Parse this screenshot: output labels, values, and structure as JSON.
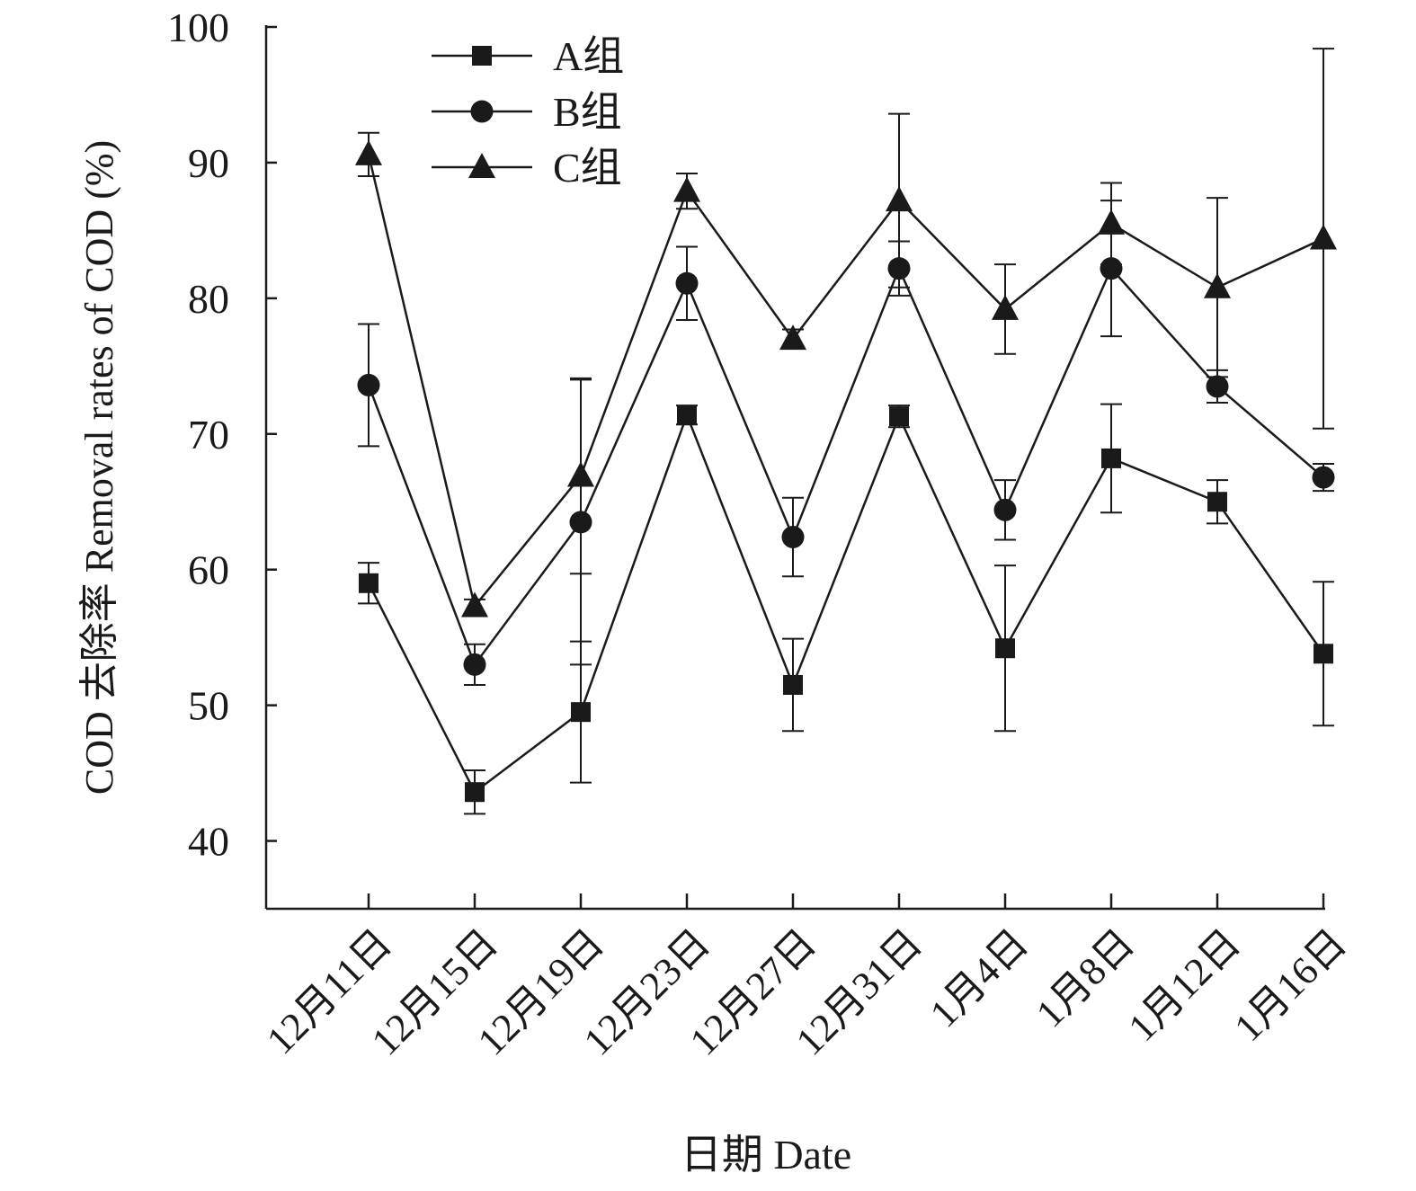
{
  "chart_data": {
    "type": "line",
    "title": "",
    "xlabel": "日期 Date",
    "ylabel": "COD 去除率 Removal rates of COD (%)",
    "ylim": [
      35,
      100
    ],
    "yticks": [
      40,
      50,
      60,
      70,
      80,
      90,
      100
    ],
    "categories": [
      "12月11日",
      "12月15日",
      "12月19日",
      "12月23日",
      "12月27日",
      "12月31日",
      "1月4日",
      "1月8日",
      "1月12日",
      "1月16日"
    ],
    "x_points": 10,
    "legend_position": "top-left",
    "grid": false,
    "series": [
      {
        "name": "A组",
        "marker": "square",
        "values": [
          59.0,
          43.6,
          49.5,
          71.4,
          51.5,
          71.3,
          54.2,
          68.2,
          65.0,
          53.8
        ],
        "errors": [
          1.5,
          1.6,
          5.2,
          0.7,
          3.4,
          0.8,
          6.1,
          4.0,
          1.6,
          5.3
        ]
      },
      {
        "name": "B组",
        "marker": "circle",
        "values": [
          73.6,
          53.0,
          63.5,
          81.1,
          62.4,
          82.2,
          64.4,
          82.2,
          73.5,
          66.8
        ],
        "errors": [
          4.5,
          1.5,
          10.5,
          2.7,
          2.9,
          2.0,
          2.2,
          5.0,
          1.2,
          1.0
        ]
      },
      {
        "name": "C组",
        "marker": "triangle",
        "values": [
          90.6,
          57.3,
          66.9,
          87.9,
          77.0,
          87.2,
          79.2,
          85.5,
          80.8,
          84.4
        ],
        "errors": [
          1.6,
          0.5,
          7.2,
          1.3,
          0.7,
          6.4,
          3.3,
          3.0,
          6.6,
          14.0
        ]
      }
    ]
  }
}
